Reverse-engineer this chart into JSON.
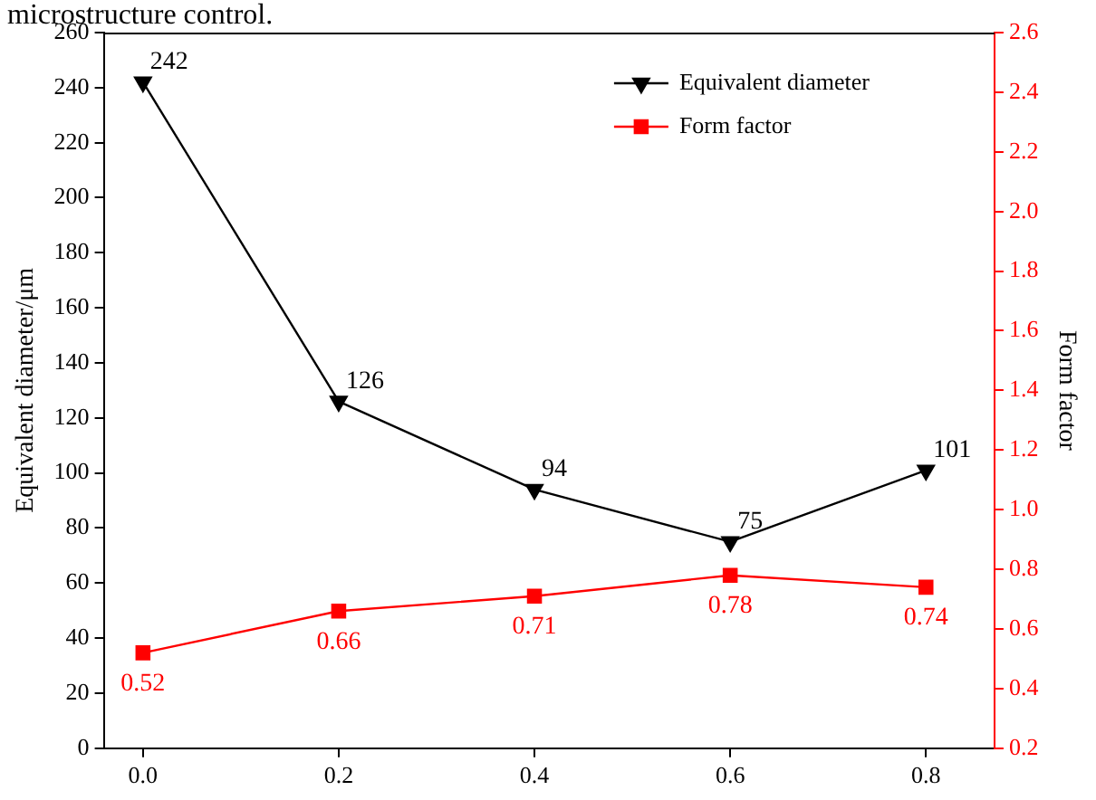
{
  "chart_data": {
    "type": "line",
    "ylabel": "Equivalent diameter/μm",
    "y2label": "Form factor",
    "annotations": [
      "microstructure control."
    ],
    "x": [
      0,
      0.2,
      0.4,
      0.6,
      0.8
    ],
    "xlim": [
      -0.04,
      0.87
    ],
    "xticks": [
      {
        "value": 0,
        "label": "0.0"
      },
      {
        "value": 0.2,
        "label": "0.2"
      },
      {
        "value": 0.4,
        "label": "0.4"
      },
      {
        "value": 0.6,
        "label": "0.6"
      },
      {
        "value": 0.8,
        "label": "0.8"
      }
    ],
    "ylim": [
      0,
      260
    ],
    "yticks": [
      0,
      20,
      40,
      60,
      80,
      100,
      120,
      140,
      160,
      180,
      200,
      220,
      240,
      260
    ],
    "y2lim": [
      0.2,
      2.6
    ],
    "y2ticks": [
      {
        "value": 0.2,
        "label": "0.2"
      },
      {
        "value": 0.4,
        "label": "0.4"
      },
      {
        "value": 0.6,
        "label": "0.6"
      },
      {
        "value": 0.8,
        "label": "0.8"
      },
      {
        "value": 1,
        "label": "1.0"
      },
      {
        "value": 1.2,
        "label": "1.2"
      },
      {
        "value": 1.4,
        "label": "1.4"
      },
      {
        "value": 1.6,
        "label": "1.6"
      },
      {
        "value": 1.8,
        "label": "1.8"
      },
      {
        "value": 2,
        "label": "2.0"
      },
      {
        "value": 2.2,
        "label": "2.2"
      },
      {
        "value": 2.4,
        "label": "2.4"
      },
      {
        "value": 2.6,
        "label": "2.6"
      }
    ],
    "series": [
      {
        "name": "Equivalent diameter",
        "color": "#000000",
        "marker": "triangle",
        "values": [
          242,
          126,
          94,
          75,
          101
        ]
      },
      {
        "name": "Form factor",
        "color": "#ff0000",
        "marker": "square",
        "axis": "y2",
        "values": [
          0.52,
          0.66,
          0.71,
          0.78,
          0.74
        ]
      }
    ],
    "data_labels": true,
    "legend": "top right",
    "grid": false
  }
}
